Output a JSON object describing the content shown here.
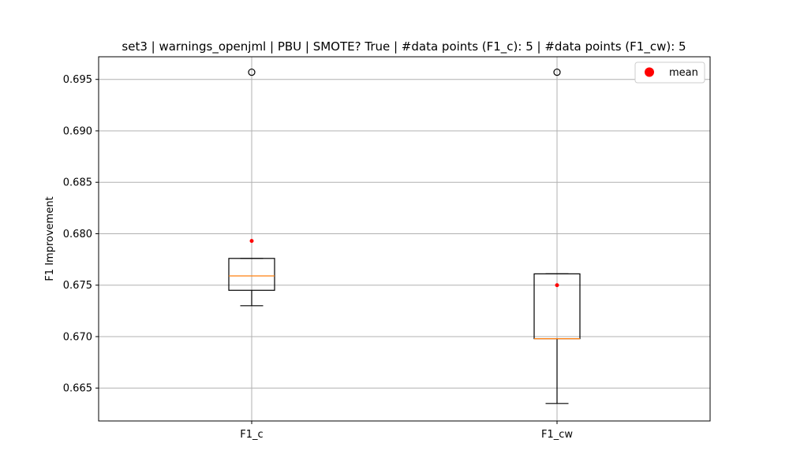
{
  "chart_data": {
    "type": "box",
    "title": "set3 | warnings_openjml | PBU | SMOTE? True | #data points (F1_c): 5 | #data points (F1_cw): 5",
    "xlabel": "",
    "ylabel": "F1 Improvement",
    "categories": [
      "F1_c",
      "F1_cw"
    ],
    "ylim": [
      0.6618,
      0.6972
    ],
    "yticks": [
      "0.665",
      "0.670",
      "0.675",
      "0.680",
      "0.685",
      "0.690",
      "0.695"
    ],
    "grid": true,
    "legend": {
      "position": "upper-right",
      "entries": [
        {
          "label": "mean",
          "color": "#ff0000",
          "marker": "circle"
        }
      ]
    },
    "boxes": [
      {
        "category": "F1_c",
        "whisker_low": 0.673,
        "q1": 0.6745,
        "median": 0.6759,
        "q3": 0.6776,
        "whisker_high": 0.6776,
        "mean": 0.6793,
        "outliers": [
          0.6957
        ]
      },
      {
        "category": "F1_cw",
        "whisker_low": 0.6635,
        "q1": 0.6698,
        "median": 0.6698,
        "q3": 0.6761,
        "whisker_high": 0.6761,
        "mean": 0.675,
        "outliers": [
          0.6957
        ]
      }
    ],
    "colors": {
      "box": "#000000",
      "median": "#ff7f0e",
      "mean": "#ff0000",
      "grid": "#b0b0b0",
      "outlier": "#000000"
    }
  }
}
